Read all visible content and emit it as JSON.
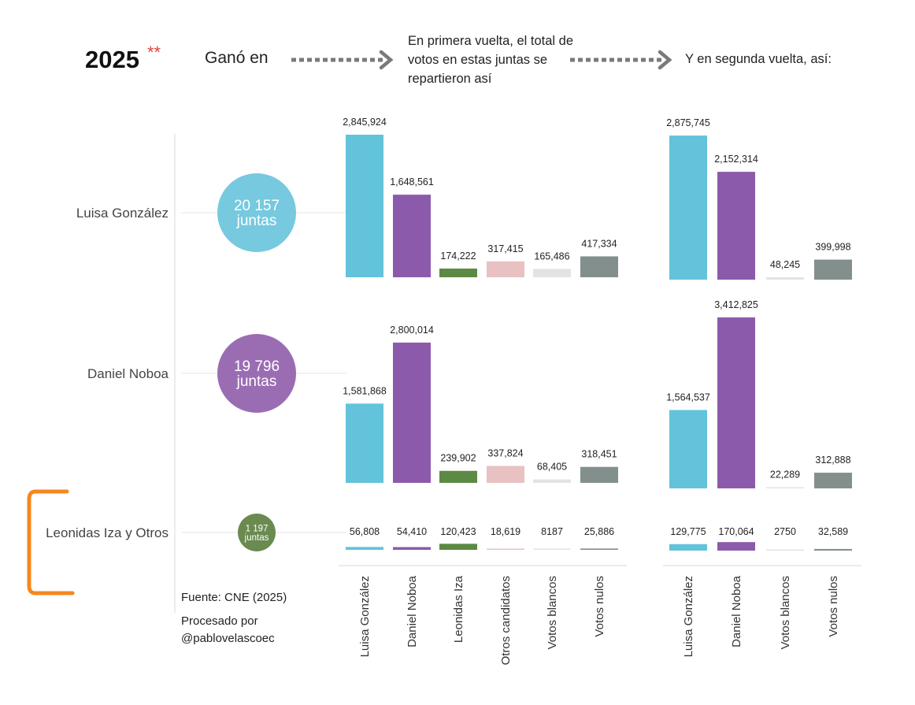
{
  "header": {
    "year": "2025",
    "year_mark": "**",
    "winner_label": "Ganó en",
    "first_round_label": "En primera vuelta, el total de votos en estas juntas se repartieron así",
    "second_round_label": "Y en segunda vuelta, así:"
  },
  "footer": {
    "source": "Fuente: CNE (2025)",
    "credit": "Procesado por @pablovelascoec"
  },
  "colors": {
    "luisa": "#62c3da",
    "noboa": "#8c5aab",
    "iza": "#5c8a44",
    "otros": "#e8c1c3",
    "blancos": "#e3e3e3",
    "nulos": "#838f8d",
    "circle_luisa": "#76c9df",
    "circle_noboa": "#9a6db3",
    "circle_iza": "#6a8a50",
    "bracket": "#f5871f"
  },
  "chart_data": {
    "type": "bar",
    "rows": [
      {
        "winner": "Luisa González",
        "juntas": "20 157",
        "juntas_unit": "juntas",
        "first_round": [
          2845924,
          1648561,
          174222,
          317415,
          165486,
          417334
        ],
        "first_round_labels": [
          "2,845,924",
          "1,648,561",
          "174,222",
          "317,415",
          "165,486",
          "417,334"
        ],
        "second_round": [
          2875745,
          2152314,
          48245,
          399998
        ],
        "second_round_labels": [
          "2,875,745",
          "2,152,314",
          "48,245",
          "399,998"
        ]
      },
      {
        "winner": "Daniel Noboa",
        "juntas": "19 796",
        "juntas_unit": "juntas",
        "first_round": [
          1581868,
          2800014,
          239902,
          337824,
          68405,
          318451
        ],
        "first_round_labels": [
          "1,581,868",
          "2,800,014",
          "239,902",
          "337,824",
          "68,405",
          "318,451"
        ],
        "second_round": [
          1564537,
          3412825,
          22289,
          312888
        ],
        "second_round_labels": [
          "1,564,537",
          "3,412,825",
          "22,289",
          "312,888"
        ]
      },
      {
        "winner": "Leonidas Iza y Otros",
        "juntas": "1 197",
        "juntas_unit": "juntas",
        "first_round": [
          56808,
          54410,
          120423,
          18619,
          8187,
          25886
        ],
        "first_round_labels": [
          "56,808",
          "54,410",
          "120,423",
          "18,619",
          "8187",
          "25,886"
        ],
        "second_round": [
          129775,
          170064,
          2750,
          32589
        ],
        "second_round_labels": [
          "129,775",
          "170,064",
          "2750",
          "32,589"
        ]
      }
    ],
    "first_round_categories": [
      "Luisa González",
      "Daniel Noboa",
      "Leonidas Iza",
      "Otros candidatos",
      "Votos blancos",
      "Votos nulos"
    ],
    "second_round_categories": [
      "Luisa González",
      "Daniel Noboa",
      "Votos blancos",
      "Votos nulos"
    ]
  }
}
